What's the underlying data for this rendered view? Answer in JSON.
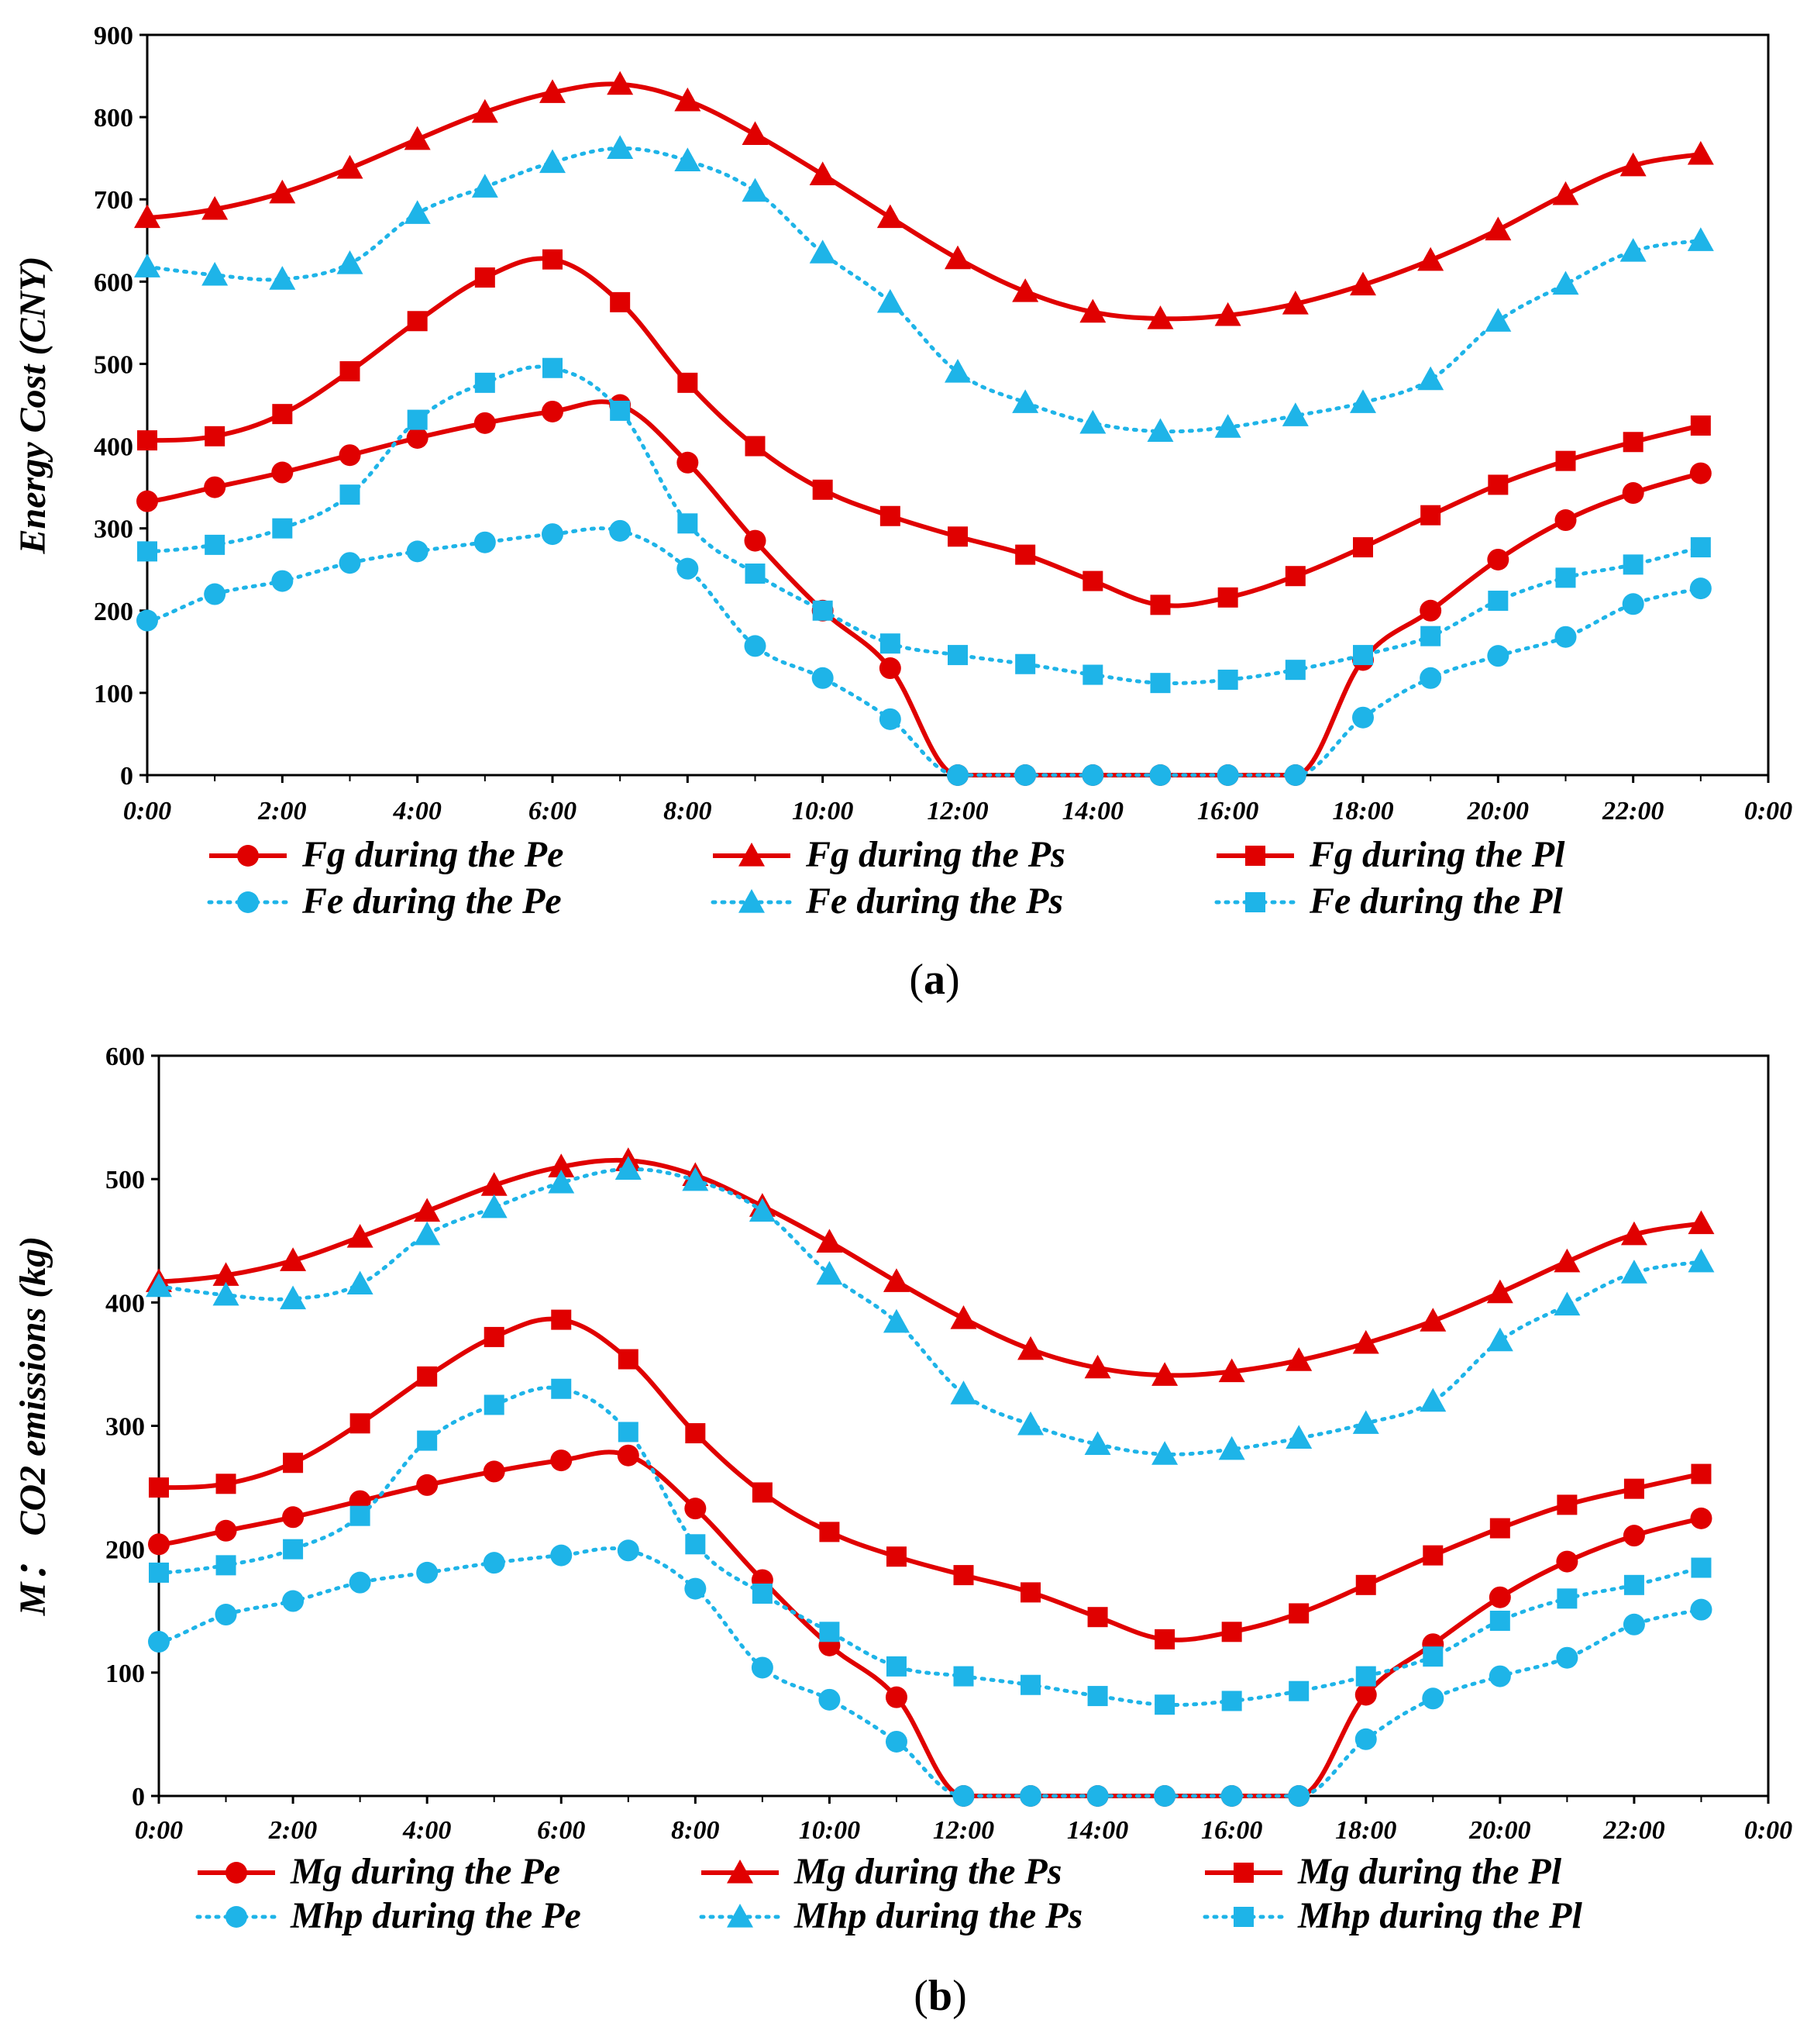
{
  "colors": {
    "red": "#e00000",
    "cyan": "#1eb4e8",
    "axis": "#000000"
  },
  "chart_data": [
    {
      "type": "line",
      "panel_label": "(a)",
      "caption_left": "(",
      "caption_letter": "a",
      "caption_right": ")",
      "ylabel": "Energy Cost (CNY)",
      "xlabel": "",
      "ylim": [
        0,
        900
      ],
      "yticks": [
        0,
        100,
        200,
        300,
        400,
        500,
        600,
        700,
        800,
        900
      ],
      "x_tick_labels": [
        "0:00",
        "2:00",
        "4:00",
        "6:00",
        "8:00",
        "10:00",
        "12:00",
        "14:00",
        "16:00",
        "18:00",
        "20:00",
        "22:00",
        "0:00"
      ],
      "x_range_hours": [
        0,
        24
      ],
      "x": [
        0,
        1,
        2,
        3,
        4,
        5,
        6,
        7,
        8,
        9,
        10,
        11,
        12,
        13,
        14,
        15,
        16,
        17,
        18,
        19,
        20,
        21,
        22,
        23
      ],
      "series": [
        {
          "name": "Fg during the Pe",
          "color": "red",
          "dash": false,
          "marker": "circle",
          "values": [
            333,
            350,
            368,
            389,
            410,
            428,
            442,
            450,
            380,
            285,
            200,
            130,
            0,
            0,
            0,
            0,
            0,
            0,
            140,
            200,
            262,
            310,
            343,
            367
          ]
        },
        {
          "name": "Fg during the Ps",
          "color": "red",
          "dash": false,
          "marker": "triangle",
          "values": [
            678,
            688,
            708,
            738,
            773,
            806,
            830,
            840,
            820,
            779,
            730,
            678,
            628,
            588,
            563,
            555,
            559,
            573,
            596,
            626,
            663,
            706,
            741,
            755
          ]
        },
        {
          "name": "Fg  during the Pl",
          "color": "red",
          "dash": false,
          "marker": "square",
          "values": [
            407,
            412,
            439,
            491,
            552,
            605,
            627,
            575,
            477,
            400,
            347,
            315,
            290,
            268,
            236,
            207,
            216,
            242,
            277,
            316,
            353,
            382,
            405,
            425
          ]
        },
        {
          "name": "Fe during the Pe",
          "color": "cyan",
          "dash": true,
          "marker": "circle",
          "values": [
            188,
            220,
            236,
            258,
            272,
            283,
            293,
            297,
            251,
            157,
            118,
            68,
            0,
            0,
            0,
            0,
            0,
            0,
            70,
            118,
            145,
            168,
            208,
            227
          ]
        },
        {
          "name": "Fe during the Ps",
          "color": "cyan",
          "dash": true,
          "marker": "triangle",
          "values": [
            618,
            608,
            603,
            622,
            683,
            715,
            745,
            762,
            747,
            710,
            635,
            575,
            490,
            453,
            428,
            418,
            423,
            437,
            453,
            481,
            552,
            597,
            637,
            650
          ]
        },
        {
          "name": "Fe during the Pl",
          "color": "cyan",
          "dash": true,
          "marker": "square",
          "values": [
            272,
            280,
            300,
            341,
            432,
            477,
            495,
            443,
            306,
            245,
            200,
            160,
            146,
            135,
            122,
            112,
            116,
            128,
            146,
            169,
            212,
            240,
            256,
            277
          ]
        }
      ]
    },
    {
      "type": "line",
      "panel_label": "(b)",
      "caption_left": "(",
      "caption_letter": "b",
      "caption_right": ")",
      "ylabel": "M： CO2 emissions (kg)",
      "xlabel": "",
      "ylim": [
        0,
        600
      ],
      "yticks": [
        0,
        100,
        200,
        300,
        400,
        500,
        600
      ],
      "x_tick_labels": [
        "0:00",
        "2:00",
        "4:00",
        "6:00",
        "8:00",
        "10:00",
        "12:00",
        "14:00",
        "16:00",
        "18:00",
        "20:00",
        "22:00",
        "0:00"
      ],
      "x_range_hours": [
        0,
        24
      ],
      "x": [
        0,
        1,
        2,
        3,
        4,
        5,
        6,
        7,
        8,
        9,
        10,
        11,
        12,
        13,
        14,
        15,
        16,
        17,
        18,
        19,
        20,
        21,
        22,
        23
      ],
      "series": [
        {
          "name": "Mg during the Pe",
          "color": "red",
          "dash": false,
          "marker": "circle",
          "values": [
            204,
            215,
            226,
            239,
            252,
            263,
            272,
            276,
            233,
            175,
            122,
            80,
            0,
            0,
            0,
            0,
            0,
            0,
            82,
            123,
            161,
            190,
            211,
            225
          ]
        },
        {
          "name": "Mg during the Ps",
          "color": "red",
          "dash": false,
          "marker": "triangle",
          "values": [
            417,
            422,
            434,
            453,
            474,
            495,
            510,
            515,
            503,
            478,
            449,
            417,
            387,
            362,
            347,
            341,
            344,
            353,
            367,
            385,
            408,
            433,
            455,
            464
          ]
        },
        {
          "name": "Mg during the Pl",
          "color": "red",
          "dash": false,
          "marker": "square",
          "values": [
            250,
            253,
            270,
            302,
            340,
            372,
            386,
            354,
            294,
            246,
            214,
            194,
            179,
            165,
            145,
            127,
            133,
            148,
            171,
            195,
            217,
            236,
            249,
            261
          ]
        },
        {
          "name": "Mhp during the Pe",
          "color": "cyan",
          "dash": true,
          "marker": "circle",
          "values": [
            125,
            147,
            158,
            173,
            181,
            189,
            195,
            199,
            168,
            104,
            78,
            44,
            0,
            0,
            0,
            0,
            0,
            0,
            46,
            79,
            97,
            112,
            139,
            151
          ]
        },
        {
          "name": "Mhp during the Ps",
          "color": "cyan",
          "dash": true,
          "marker": "triangle",
          "values": [
            413,
            406,
            403,
            415,
            455,
            477,
            497,
            508,
            499,
            474,
            423,
            384,
            326,
            301,
            285,
            277,
            281,
            290,
            302,
            320,
            369,
            398,
            424,
            433
          ]
        },
        {
          "name": "Mhp during the Pl",
          "color": "cyan",
          "dash": true,
          "marker": "square",
          "values": [
            181,
            187,
            200,
            227,
            288,
            317,
            330,
            295,
            204,
            164,
            133,
            105,
            97,
            90,
            81,
            74,
            77,
            85,
            97,
            113,
            142,
            160,
            171,
            185
          ]
        }
      ]
    }
  ]
}
